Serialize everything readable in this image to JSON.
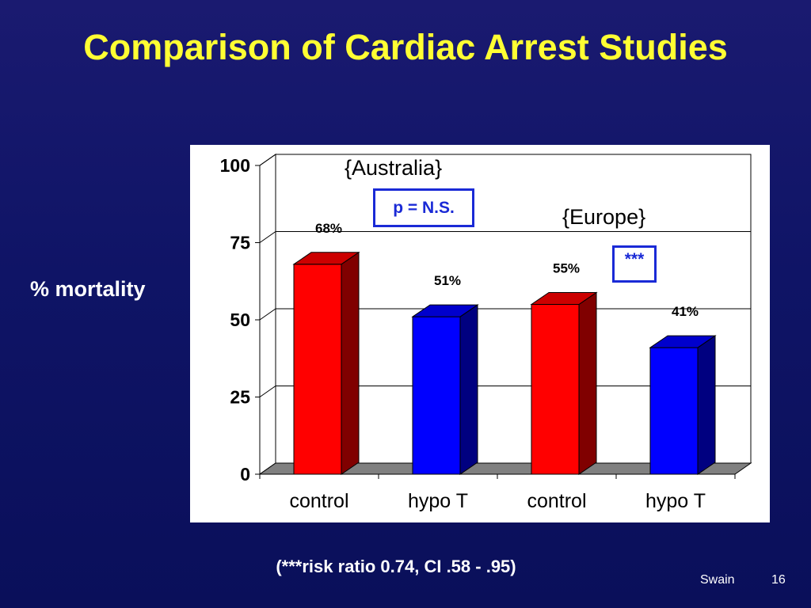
{
  "slide": {
    "title": "Comparison of Cardiac Arrest Studies",
    "y_axis_label": "% mortality",
    "footnote": "(***risk ratio 0.74, CI .58 - .95)",
    "footer_author": "Swain",
    "page_number": "16"
  },
  "annotations": {
    "australia_label": "{Australia}",
    "europe_label": "{Europe}",
    "australia_significance": "p = N.S.",
    "europe_significance": "***"
  },
  "chart_data": {
    "type": "bar",
    "title": "",
    "xlabel": "",
    "ylabel": "% mortality",
    "categories": [
      "control",
      "hypo T",
      "control",
      "hypo T"
    ],
    "values": [
      68,
      51,
      55,
      41
    ],
    "data_labels": [
      "68%",
      "51%",
      "55%",
      "41%"
    ],
    "bar_colors": [
      "#ff0000",
      "#0000ff",
      "#ff0000",
      "#0000ff"
    ],
    "ylim": [
      0,
      100
    ],
    "yticks": [
      0,
      25,
      50,
      75,
      100
    ],
    "grid": true,
    "style": "3d"
  }
}
